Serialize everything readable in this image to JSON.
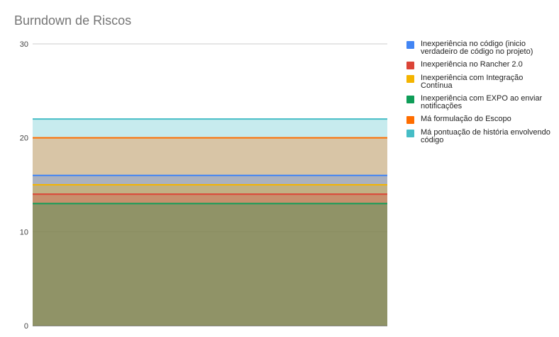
{
  "chart_data": {
    "type": "area",
    "title": "Burndown de Riscos",
    "xlabel": "",
    "ylabel": "",
    "ylim": [
      0,
      30
    ],
    "yticks": [
      0,
      10,
      20,
      30
    ],
    "grid": true,
    "legend_position": "right",
    "x": [
      0,
      1
    ],
    "series": [
      {
        "name": "Inexperiência no código (inicio verdadeiro de código no projeto)",
        "color": "#4285f4",
        "values": [
          16,
          16
        ]
      },
      {
        "name": "Inexperiência no Rancher 2.0",
        "color": "#db4437",
        "values": [
          14,
          14
        ]
      },
      {
        "name": "Inexperiência com Integração Contínua",
        "color": "#f4b400",
        "values": [
          15,
          15
        ]
      },
      {
        "name": "Inexperiência com EXPO ao enviar notificações",
        "color": "#0f9d58",
        "values": [
          13,
          13
        ]
      },
      {
        "name": "Má formulação do Escopo",
        "color": "#ff6d00",
        "values": [
          20,
          20
        ]
      },
      {
        "name": "Má pontuação de história envolvendo código",
        "color": "#46bdc6",
        "values": [
          22,
          22
        ]
      }
    ]
  }
}
